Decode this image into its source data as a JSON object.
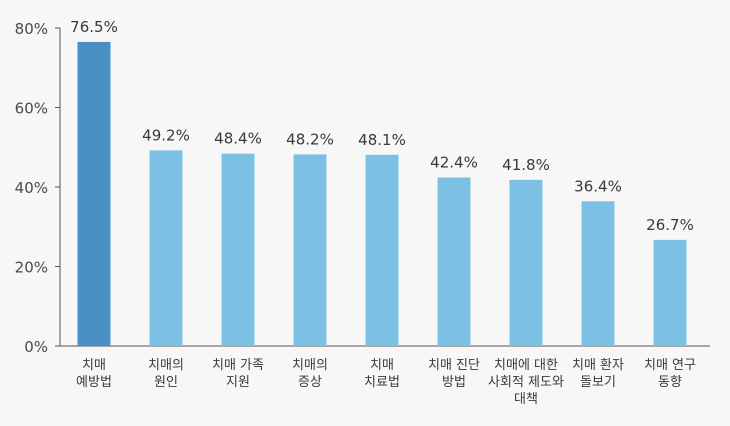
{
  "chart_data": {
    "type": "bar",
    "categories": [
      [
        "치매",
        "예방법"
      ],
      [
        "치매의",
        "원인"
      ],
      [
        "치매 가족",
        "지원"
      ],
      [
        "치매의",
        "증상"
      ],
      [
        "치매",
        "치료법"
      ],
      [
        "치매 진단",
        "방법"
      ],
      [
        "치매에 대한",
        "사회적 제도와",
        "대책"
      ],
      [
        "치매 환자",
        "돌보기"
      ],
      [
        "치매 연구",
        "동향"
      ]
    ],
    "values": [
      76.5,
      49.2,
      48.4,
      48.2,
      48.1,
      42.4,
      41.8,
      36.4,
      26.7
    ],
    "value_labels": [
      "76.5%",
      "49.2%",
      "48.4%",
      "48.2%",
      "48.1%",
      "42.4%",
      "41.8%",
      "36.4%",
      "26.7%"
    ],
    "yticks": [
      0,
      20,
      40,
      60,
      80
    ],
    "ytick_labels": [
      "0%",
      "20%",
      "40%",
      "60%",
      "80%"
    ],
    "ylim": [
      0,
      80
    ],
    "title": "",
    "xlabel": "",
    "ylabel": "",
    "grid": false,
    "colors": {
      "highlight": "#4a90c4",
      "bar": "#7cc1e4",
      "axis": "#555555",
      "background": "#f7f7f7"
    }
  }
}
